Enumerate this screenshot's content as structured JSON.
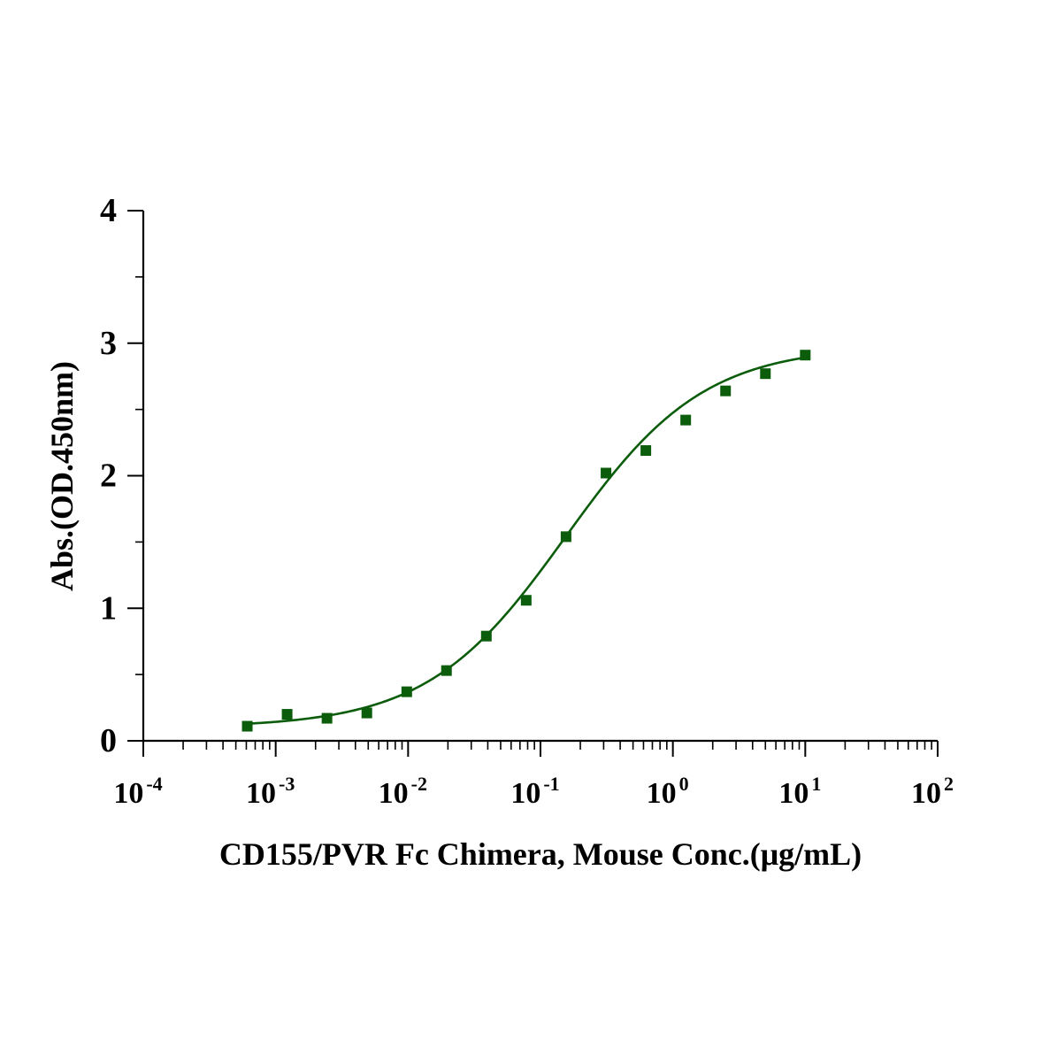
{
  "chart_data": {
    "type": "scatter",
    "title": "",
    "xlabel": "CD155/PVR Fc Chimera, Mouse Conc.(μg/mL)",
    "ylabel": "Abs.(OD.450nm)",
    "x_scale": "log",
    "xlim": [
      0.0001,
      100
    ],
    "ylim": [
      0,
      4
    ],
    "x_ticks": [
      {
        "value": 0.0001,
        "base": "10",
        "exp": "-4"
      },
      {
        "value": 0.001,
        "base": "10",
        "exp": "-3"
      },
      {
        "value": 0.01,
        "base": "10",
        "exp": "-2"
      },
      {
        "value": 0.1,
        "base": "10",
        "exp": "-1"
      },
      {
        "value": 1,
        "base": "10",
        "exp": "0"
      },
      {
        "value": 10,
        "base": "10",
        "exp": "1"
      },
      {
        "value": 100,
        "base": "10",
        "exp": "2"
      }
    ],
    "y_ticks": [
      {
        "value": 0,
        "label": "0"
      },
      {
        "value": 1,
        "label": "1"
      },
      {
        "value": 2,
        "label": "2"
      },
      {
        "value": 3,
        "label": "3"
      },
      {
        "value": 4,
        "label": "4"
      }
    ],
    "grid": false,
    "legend": "none",
    "color": "#0b5c0b",
    "series": [
      {
        "marker": "square",
        "x": [
          0.00061,
          0.00122,
          0.00244,
          0.00488,
          0.00977,
          0.0195,
          0.039,
          0.078,
          0.156,
          0.3125,
          0.625,
          1.25,
          2.5,
          5,
          10
        ],
        "y": [
          0.11,
          0.2,
          0.17,
          0.21,
          0.37,
          0.53,
          0.79,
          1.06,
          1.54,
          2.02,
          2.19,
          2.42,
          2.64,
          2.77,
          2.91
        ]
      }
    ],
    "fit_curve": {
      "model": "4PL",
      "bottom": 0.1,
      "top": 2.98,
      "ec50": 0.155,
      "hill": 0.83,
      "x_range": [
        0.00061,
        10
      ]
    }
  }
}
